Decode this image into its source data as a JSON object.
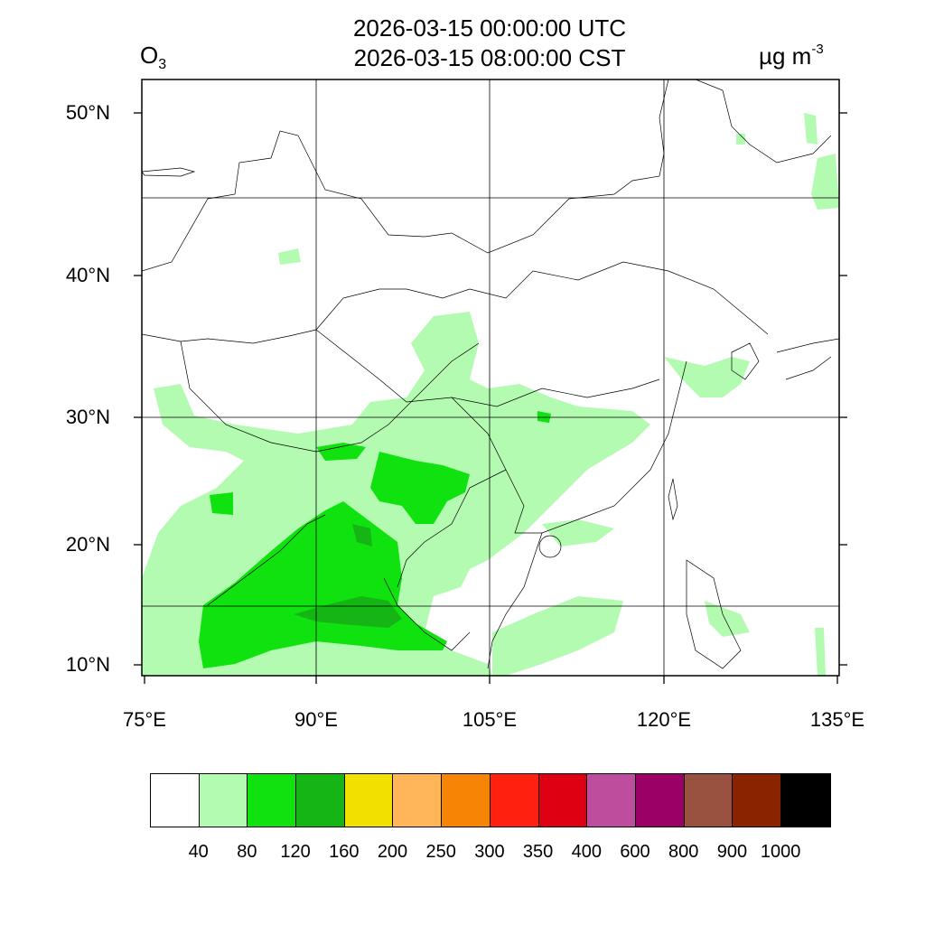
{
  "title": {
    "utc": "2026-03-15 00:00:00 UTC",
    "cst": "2026-03-15 08:00:00 CST"
  },
  "variable": {
    "base": "O",
    "subscript": "3"
  },
  "unit": {
    "base": "µg m",
    "superscript": "-3"
  },
  "axes": {
    "lat_labels": [
      "50°N",
      "40°N",
      "30°N",
      "20°N",
      "10°N"
    ],
    "lon_labels": [
      "75°E",
      "90°E",
      "105°E",
      "120°E",
      "135°E"
    ],
    "lat_range": [
      9,
      52
    ],
    "lon_range": [
      75,
      135
    ],
    "grid": true
  },
  "colorbar": {
    "colors": [
      "#ffffff",
      "#b3fbb1",
      "#10e210",
      "#15b515",
      "#f2e000",
      "#ffb558",
      "#f78505",
      "#ff2010",
      "#de0012",
      "#bd4e9e",
      "#9b0067",
      "#98523f",
      "#8a2300",
      "#000000"
    ],
    "labels": [
      "40",
      "80",
      "120",
      "160",
      "200",
      "250",
      "300",
      "350",
      "400",
      "600",
      "800",
      "900",
      "1000"
    ]
  },
  "chart_data": {
    "type": "heatmap",
    "variable": "O3",
    "unit": "µg m-3",
    "levels": [
      40,
      80,
      120,
      160,
      200,
      250,
      300,
      350,
      400,
      600,
      800,
      900,
      1000
    ],
    "xlim": [
      75,
      135
    ],
    "ylim": [
      9,
      52
    ]
  }
}
